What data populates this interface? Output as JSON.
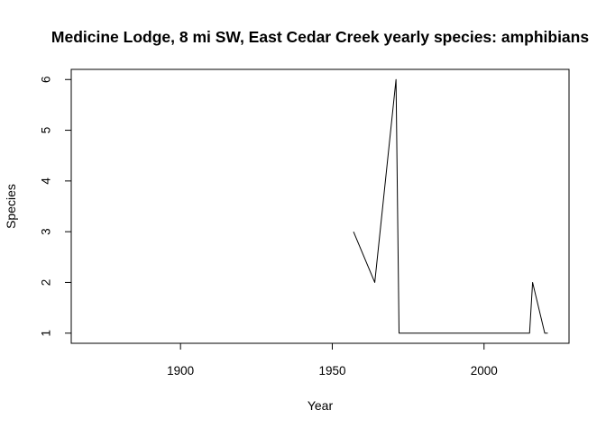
{
  "chart_data": {
    "type": "line",
    "title": "Medicine Lodge, 8 mi SW, East Cedar Creek yearly species: amphibians",
    "xlabel": "Year",
    "ylabel": "Species",
    "xlim": [
      1864,
      2028
    ],
    "ylim": [
      0.8,
      6.2
    ],
    "x_ticks": [
      1900,
      1950,
      2000
    ],
    "y_ticks": [
      1,
      2,
      3,
      4,
      5,
      6
    ],
    "grid": false,
    "series": [
      {
        "color": "#000000",
        "x": [
          1957,
          1964,
          1971,
          1972,
          2015,
          2016,
          2020,
          2021
        ],
        "y": [
          3,
          2,
          6,
          1,
          1,
          2,
          1,
          1
        ]
      }
    ]
  }
}
